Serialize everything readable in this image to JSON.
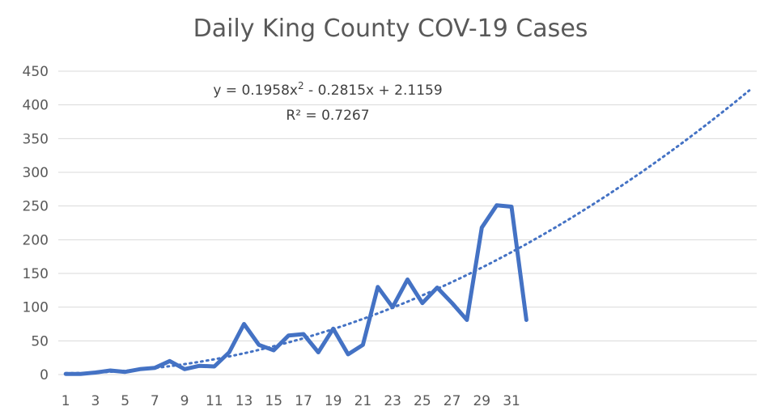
{
  "chart_data": {
    "type": "line",
    "title": "Daily King County COV-19 Cases",
    "xlabel": "",
    "ylabel": "",
    "ylim": [
      0,
      450
    ],
    "yticks": [
      "0",
      "50",
      "100",
      "150",
      "200",
      "250",
      "300",
      "350",
      "400",
      "450"
    ],
    "xticks": [
      "1",
      "3",
      "5",
      "7",
      "9",
      "11",
      "13",
      "15",
      "17",
      "19",
      "21",
      "23",
      "25",
      "27",
      "29",
      "31"
    ],
    "x": [
      1,
      2,
      3,
      4,
      5,
      6,
      7,
      8,
      9,
      10,
      11,
      12,
      13,
      14,
      15,
      16,
      17,
      18,
      19,
      20,
      21,
      22,
      23,
      24,
      25,
      26,
      27,
      28,
      29,
      30,
      31,
      32
    ],
    "series": [
      {
        "values": [
          1,
          1,
          3,
          6,
          4,
          8,
          10,
          20,
          8,
          13,
          12,
          33,
          75,
          44,
          36,
          58,
          60,
          33,
          68,
          30,
          44,
          130,
          100,
          141,
          106,
          129,
          106,
          81,
          218,
          251,
          249,
          81
        ]
      }
    ],
    "trendline": {
      "type": "polynomial",
      "order": 2,
      "equation": "y = 0.1958x",
      "equation_exp": "2",
      "equation_rest": " - 0.2815x + 2.1159",
      "r2_label": "R² = 0.7267",
      "coefficients": [
        0.1958,
        -0.2815,
        2.1159
      ],
      "x_range": [
        1,
        47
      ]
    },
    "grid": true,
    "legend": "none",
    "colors": {
      "series": "#4472C4",
      "grid": "#D9D9D9",
      "text": "#595959"
    }
  }
}
